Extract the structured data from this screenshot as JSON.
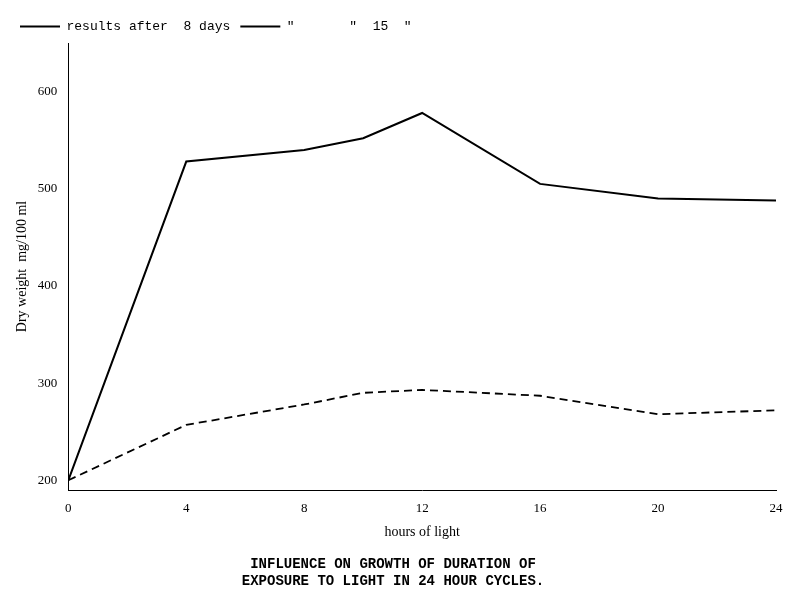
{
  "chart_data": {
    "type": "line",
    "title": [
      "INFLUENCE ON GROWTH OF DURATION OF",
      "EXPOSURE TO LIGHT IN 24 HOUR CYCLES."
    ],
    "x_label": "hours of light",
    "y_label": "Dry weight  mg/100 ml",
    "x": [
      0,
      4,
      8,
      10,
      12,
      16,
      20,
      24
    ],
    "series": [
      {
        "name": "results after  8 days",
        "color": "#000000",
        "line_style": "dashed",
        "values": [
          200,
          257,
          278,
          290,
          293,
          287,
          268,
          272
        ]
      },
      {
        "name": "\"       \"  15  \"",
        "color": "#000000",
        "line_style": "solid",
        "values": [
          200,
          528,
          540,
          552,
          578,
          505,
          490,
          488
        ]
      }
    ],
    "xlim": [
      0,
      24
    ],
    "ylim": [
      190,
      650
    ],
    "xticks": [
      0,
      4,
      8,
      12,
      16,
      20,
      24
    ],
    "yticks": [
      200,
      300,
      400,
      500,
      600
    ],
    "grid": false,
    "legend": "upper left"
  }
}
